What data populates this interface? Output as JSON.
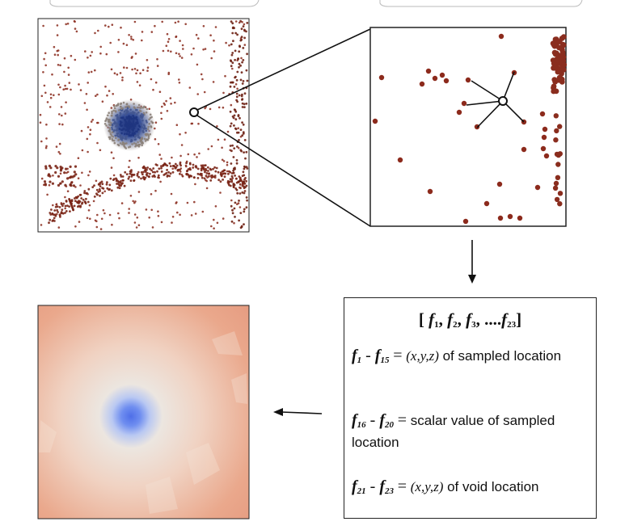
{
  "figure": {
    "vector_title": "[ f1, f2, f3, ....f23]",
    "vector_parts": [
      "f",
      "1",
      ", ",
      "f",
      "2",
      ", ",
      "f",
      "3",
      ", ....",
      "f",
      "23"
    ],
    "features": [
      {
        "from": "1",
        "to": "15",
        "eq": "=",
        "math": "(x,y,z)",
        "text": " of sampled location"
      },
      {
        "from": "16",
        "to": "20",
        "eq": "=",
        "math": "",
        "text": " scalar value of sampled location"
      },
      {
        "from": "21",
        "to": "23",
        "eq": "=",
        "math": "(x,y,z)",
        "text": " of void location"
      }
    ]
  },
  "colors": {
    "point_fill": "#8a2a1c",
    "point_stroke": "#5a5a5a",
    "void_core": "#1f3a8a",
    "field_warm": "#e9a58a",
    "field_blue": "#5b7de8",
    "outline": "#222222"
  }
}
